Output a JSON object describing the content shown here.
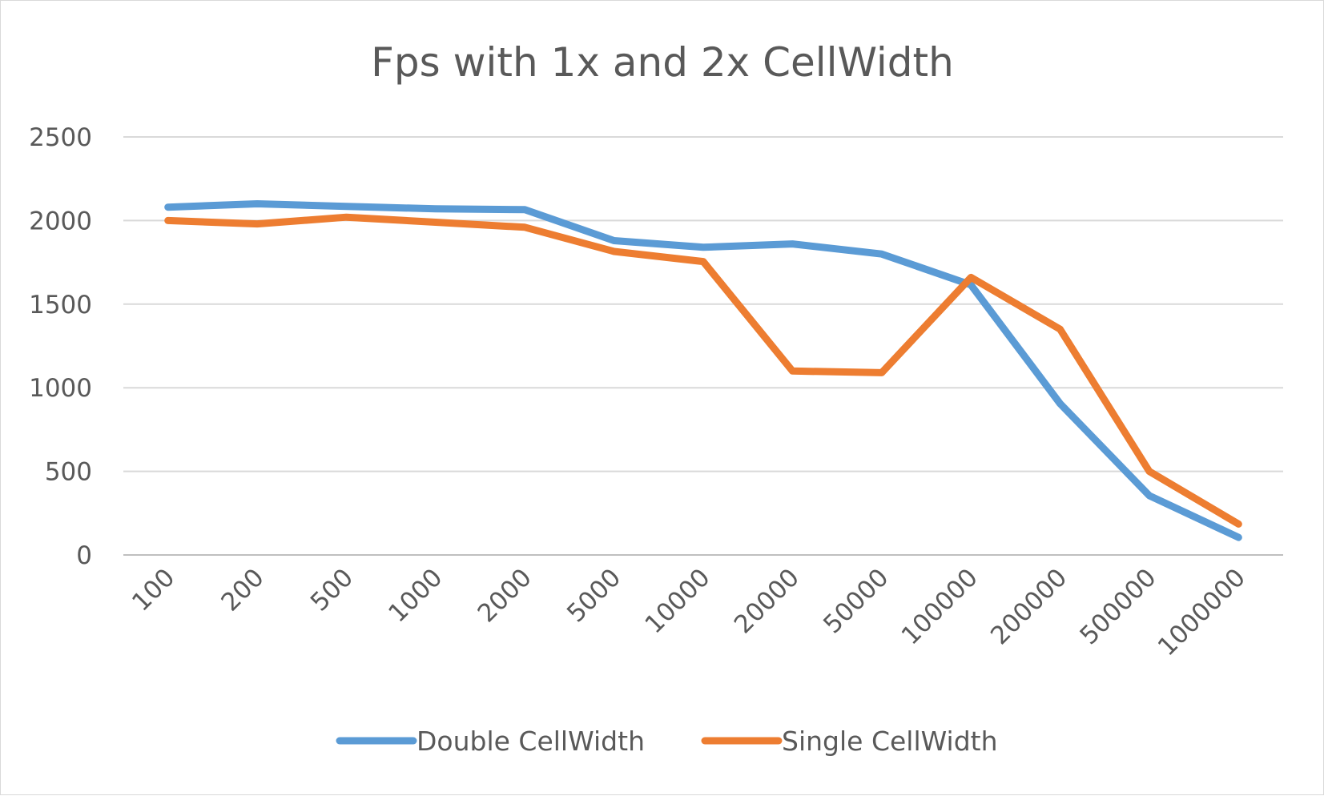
{
  "chart_data": {
    "type": "line",
    "title": "Fps with 1x and 2x CellWidth",
    "xlabel": "",
    "ylabel": "",
    "categories": [
      "100",
      "200",
      "500",
      "1000",
      "2000",
      "5000",
      "10000",
      "20000",
      "50000",
      "100000",
      "200000",
      "500000",
      "1000000"
    ],
    "ylim": [
      0,
      2500
    ],
    "yticks": [
      0,
      500,
      1000,
      1500,
      2000,
      2500
    ],
    "grid": true,
    "legend_position": "bottom",
    "series": [
      {
        "name": "Double CellWidth",
        "color": "#5b9bd5",
        "values": [
          2080,
          2100,
          2085,
          2070,
          2065,
          1880,
          1840,
          1860,
          1800,
          1615,
          905,
          355,
          105
        ]
      },
      {
        "name": "Single CellWidth",
        "color": "#ed7d31",
        "values": [
          2000,
          1980,
          2020,
          1990,
          1960,
          1815,
          1755,
          1100,
          1090,
          1660,
          1350,
          500,
          185
        ]
      }
    ]
  }
}
